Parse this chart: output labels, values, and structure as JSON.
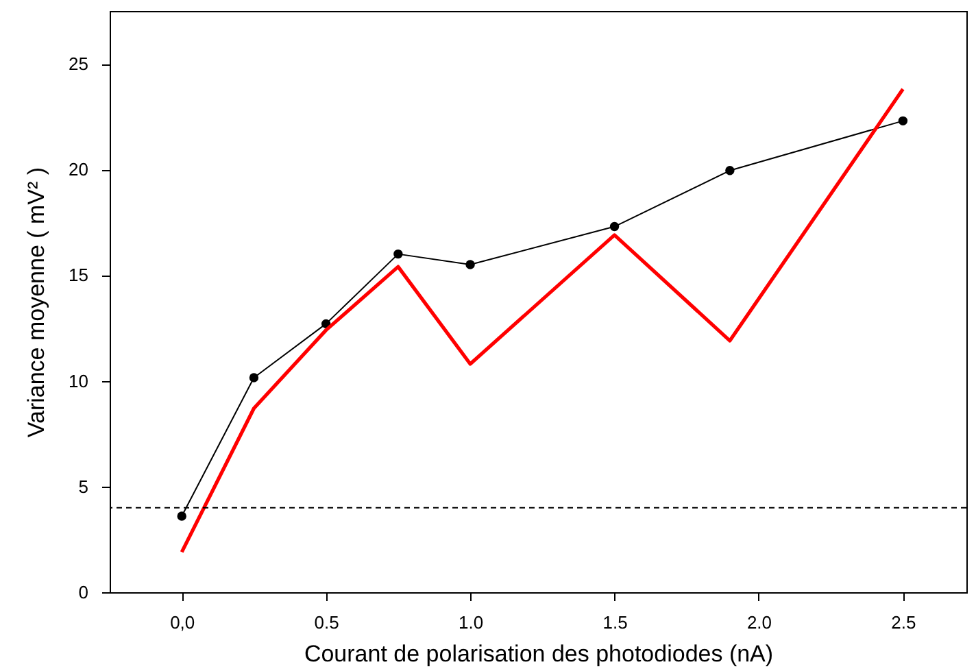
{
  "chart_data": {
    "type": "line",
    "xlabel": "Courant de polarisation des photodiodes (nA)",
    "ylabel": "Variance moyenne  ( mV² )",
    "xlim": [
      -0.25,
      2.72
    ],
    "ylim": [
      0,
      27.5
    ],
    "xticks": [
      {
        "value": 0,
        "label": "0,0"
      },
      {
        "value": 0.5,
        "label": "0.5"
      },
      {
        "value": 1,
        "label": "1.0"
      },
      {
        "value": 1.5,
        "label": "1.5"
      },
      {
        "value": 2,
        "label": "2.0"
      },
      {
        "value": 2.5,
        "label": "2.5"
      }
    ],
    "yticks": [
      0,
      5,
      10,
      15,
      20,
      25
    ],
    "grid": false,
    "series": [
      {
        "color": "#000000",
        "marker": "circle",
        "x": [
          0,
          0.25,
          0.5,
          0.75,
          1.0,
          1.5,
          1.9,
          2.5
        ],
        "values": [
          3.6,
          10.15,
          12.7,
          16.0,
          15.5,
          17.3,
          19.95,
          22.3
        ]
      },
      {
        "color": "#ff0000",
        "marker": "none",
        "x": [
          0,
          0.25,
          0.5,
          0.75,
          1.0,
          1.5,
          1.9,
          2.5
        ],
        "values": [
          1.9,
          8.7,
          12.4,
          15.4,
          10.8,
          16.9,
          11.9,
          23.8
        ]
      }
    ],
    "ref_lines": [
      {
        "axis": "y",
        "value": 4,
        "line_style": "dashed",
        "color": "#000000"
      }
    ]
  }
}
